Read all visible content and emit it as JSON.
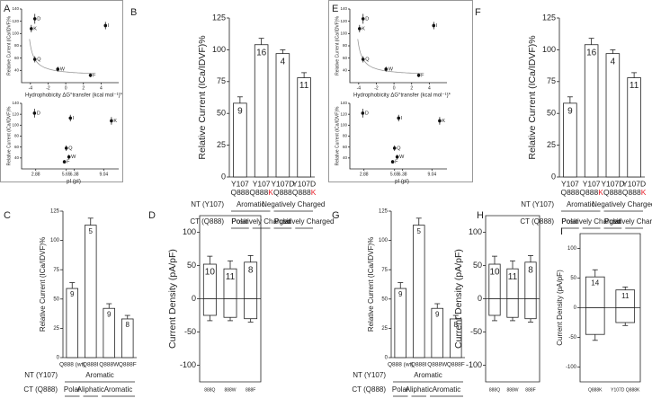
{
  "chart_data": [
    {
      "type": "scatter",
      "panel": "A",
      "xlabel": "Hydrophobicity ΔG°transfer (kcal mol⁻¹)*",
      "ylabel": "Relative Current (ICa/IDVF)%",
      "point_labels": [
        "K",
        "D",
        "Q",
        "W",
        "F",
        "I"
      ],
      "x": [
        -3.9,
        -3.5,
        -3.5,
        -0.9,
        2.8,
        4.5
      ],
      "values": [
        108,
        124,
        58,
        42,
        32,
        113
      ],
      "errors": [
        6,
        8,
        5,
        4,
        3,
        6
      ],
      "xlim": [
        -5,
        6
      ],
      "xticks": [
        -4,
        -2,
        0,
        2,
        4
      ],
      "ylim": [
        20,
        140
      ],
      "yticks": [
        40,
        60,
        80,
        100,
        120,
        140
      ]
    },
    {
      "type": "scatter",
      "xlabel": "pI (pI)",
      "ylabel": "Relative Current (ICa/IDVF)%",
      "point_labels": [
        "D",
        "Q",
        "I",
        "K",
        "W",
        "F"
      ],
      "x": [
        2.77,
        5.65,
        6.02,
        9.74,
        5.89,
        5.48
      ],
      "values": [
        122,
        58,
        113,
        108,
        42,
        33
      ],
      "errors": [
        8,
        5,
        6,
        7,
        4,
        3
      ],
      "xlim": [
        1.6,
        10.4
      ],
      "xticks": [
        2.88,
        5.65,
        6.38,
        9.04
      ],
      "ylim": [
        20,
        140
      ],
      "yticks": [
        40,
        60,
        80,
        100,
        120,
        140
      ]
    },
    {
      "type": "bar",
      "panel": "B",
      "ylabel": "Relative Current (ICa/IDVF)%",
      "color": "#ffffff",
      "suffix_color": "#e8202a",
      "categories": [
        {
          "top": "Y107",
          "bottom": "Q888"
        },
        {
          "top": "Y107",
          "bottom": "Q888",
          "suffix": "K"
        },
        {
          "top": "Y107D",
          "bottom": "Q888"
        },
        {
          "top": "Y107D",
          "bottom": "Q888",
          "suffix": "K"
        }
      ],
      "values": [
        58,
        104,
        97,
        78
      ],
      "errors": [
        5,
        5,
        3,
        4
      ],
      "annotations": [
        "9",
        "16",
        "4",
        "11"
      ],
      "ylim": [
        0,
        125
      ],
      "yticks": [
        0,
        25,
        50,
        75,
        100,
        125
      ],
      "groups": [
        {
          "label": "NT (Y107)",
          "items": [
            {
              "text": "Aromatic",
              "span": 2
            },
            {
              "text": "Negatively Charged",
              "span": 2
            }
          ]
        },
        {
          "label": "CT (Q888)",
          "items": [
            {
              "text": "Polar",
              "span": 1
            },
            {
              "text": "Positively Charged",
              "span": 1
            },
            {
              "text": "Polar",
              "span": 1
            },
            {
              "text": "Positively Charged",
              "span": 1
            }
          ]
        }
      ]
    },
    {
      "type": "bar",
      "panel": "C",
      "ylabel": "Relative Current (ICa/IDVF)%",
      "color": "#ffffff",
      "categories": [
        "Q888 (wt)",
        "Q888I",
        "Q888W",
        "Q888F"
      ],
      "values": [
        59,
        113,
        42,
        33
      ],
      "errors": [
        5,
        6,
        4,
        3
      ],
      "annotations": [
        "9",
        "5",
        "9",
        "8"
      ],
      "ylim": [
        0,
        125
      ],
      "yticks": [
        0,
        25,
        50,
        75,
        100,
        125
      ],
      "groups": [
        {
          "label": "NT (Y107)",
          "items": [
            {
              "text": "Aromatic",
              "span": 4
            }
          ]
        },
        {
          "label": "CT (Q888)",
          "items": [
            {
              "text": "Polar",
              "span": 1
            },
            {
              "text": "Aliphatic",
              "span": 1
            },
            {
              "text": "Aromatic",
              "span": 2
            }
          ]
        }
      ]
    },
    {
      "type": "bar",
      "panel": "D",
      "ylabel": "Current Density (pA/pF)",
      "color": "#ffffff",
      "categories": [
        "888Q",
        "888W",
        "888F"
      ],
      "values": [
        52,
        45,
        55
      ],
      "errors": [
        12,
        12,
        10
      ],
      "values_negative": [
        -25,
        -28,
        -30
      ],
      "errors_negative": [
        8,
        5,
        5
      ],
      "annotations": [
        "10",
        "11",
        "8"
      ],
      "ylim": [
        -125,
        125
      ],
      "yticks": [
        -100,
        -50,
        0,
        50,
        100
      ]
    },
    {
      "type": "scatter",
      "panel": "E",
      "xlabel": "Hydrophobicity ΔG°transfer (kcal mol⁻¹)*",
      "ylabel": "Relative Current (ICa/IDVF)%",
      "point_labels": [
        "K",
        "D",
        "Q",
        "W",
        "F",
        "I"
      ],
      "x": [
        -3.9,
        -3.5,
        -3.5,
        -0.9,
        2.8,
        4.5
      ],
      "values": [
        108,
        124,
        58,
        42,
        32,
        113
      ],
      "errors": [
        6,
        8,
        5,
        4,
        3,
        6
      ],
      "xlim": [
        -5,
        6
      ],
      "xticks": [
        -4,
        -2,
        0,
        2,
        4
      ],
      "ylim": [
        20,
        140
      ],
      "yticks": [
        40,
        60,
        80,
        100,
        120,
        140
      ]
    },
    {
      "type": "scatter",
      "xlabel": "pI (pI)",
      "ylabel": "Relative Current (ICa/IDVF)%",
      "point_labels": [
        "D",
        "Q",
        "I",
        "K",
        "W",
        "F"
      ],
      "x": [
        2.77,
        5.65,
        6.02,
        9.74,
        5.89,
        5.48
      ],
      "values": [
        122,
        58,
        113,
        108,
        42,
        33
      ],
      "errors": [
        8,
        5,
        6,
        7,
        4,
        3
      ],
      "xlim": [
        1.6,
        10.4
      ],
      "xticks": [
        2.88,
        5.65,
        6.38,
        9.04
      ],
      "ylim": [
        20,
        140
      ],
      "yticks": [
        40,
        60,
        80,
        100,
        120,
        140
      ]
    },
    {
      "type": "bar",
      "panel": "F",
      "ylabel": "Relative Current (ICa/IDVF)%",
      "color": "#ffffff",
      "suffix_color": "#e8202a",
      "categories": [
        {
          "top": "Y107",
          "bottom": "Q888"
        },
        {
          "top": "Y107",
          "bottom": "Q888",
          "suffix": "K"
        },
        {
          "top": "Y107D",
          "bottom": "Q888"
        },
        {
          "top": "Y107D",
          "bottom": "Q888",
          "suffix": "K"
        }
      ],
      "values": [
        58,
        104,
        97,
        78
      ],
      "errors": [
        5,
        5,
        3,
        4
      ],
      "annotations": [
        "9",
        "16",
        "4",
        "11"
      ],
      "ylim": [
        0,
        125
      ],
      "yticks": [
        0,
        25,
        50,
        75,
        100,
        125
      ],
      "groups": [
        {
          "label": "NT (Y107)",
          "items": [
            {
              "text": "Aromatic",
              "span": 2
            },
            {
              "text": "Negatively Charged",
              "span": 2
            }
          ]
        },
        {
          "label": "CT (Q888)",
          "items": [
            {
              "text": "Polar",
              "span": 1
            },
            {
              "text": "Positively Charged",
              "span": 1
            },
            {
              "text": "Polar",
              "span": 1
            },
            {
              "text": "Positively Charged",
              "span": 1
            }
          ]
        }
      ]
    },
    {
      "type": "bar",
      "panel": "G",
      "ylabel": "Relative Current (ICa/IDVF)%",
      "color": "#ffffff",
      "categories": [
        "Q888 (wt)",
        "Q888I",
        "Q888W",
        "Q888F"
      ],
      "values": [
        59,
        113,
        42,
        33
      ],
      "errors": [
        5,
        6,
        4,
        3
      ],
      "annotations": [
        "9",
        "5",
        "9",
        "8"
      ],
      "ylim": [
        0,
        125
      ],
      "yticks": [
        0,
        25,
        50,
        75,
        100,
        125
      ],
      "groups": [
        {
          "label": "NT (Y107)",
          "items": [
            {
              "text": "Aromatic",
              "span": 4
            }
          ]
        },
        {
          "label": "CT (Q888)",
          "items": [
            {
              "text": "Polar",
              "span": 1
            },
            {
              "text": "Aliphatic",
              "span": 1
            },
            {
              "text": "Aromatic",
              "span": 2
            }
          ]
        }
      ]
    },
    {
      "type": "bar",
      "panel": "H",
      "ylabel": "Current Density (pA/pF)",
      "color": "#ffffff",
      "categories": [
        "888Q",
        "888W",
        "888F"
      ],
      "values": [
        52,
        45,
        55
      ],
      "errors": [
        12,
        12,
        10
      ],
      "values_negative": [
        -25,
        -28,
        -30
      ],
      "errors_negative": [
        8,
        5,
        5
      ],
      "annotations": [
        "10",
        "11",
        "8"
      ],
      "ylim": [
        -125,
        125
      ],
      "yticks": [
        -100,
        -50,
        0,
        50,
        100
      ]
    },
    {
      "type": "bar",
      "panel": "I",
      "ylabel": "Current Density (pA/pF)",
      "color": "#ffffff",
      "categories": [
        "Q888K",
        "Y107D Q888K"
      ],
      "values": [
        52,
        30
      ],
      "errors": [
        12,
        5
      ],
      "values_negative": [
        -45,
        -25
      ],
      "errors_negative": [
        10,
        5
      ],
      "annotations": [
        "14",
        "11"
      ],
      "ylim": [
        -125,
        125
      ],
      "yticks": [
        -100,
        -50,
        0,
        50,
        100
      ]
    }
  ]
}
